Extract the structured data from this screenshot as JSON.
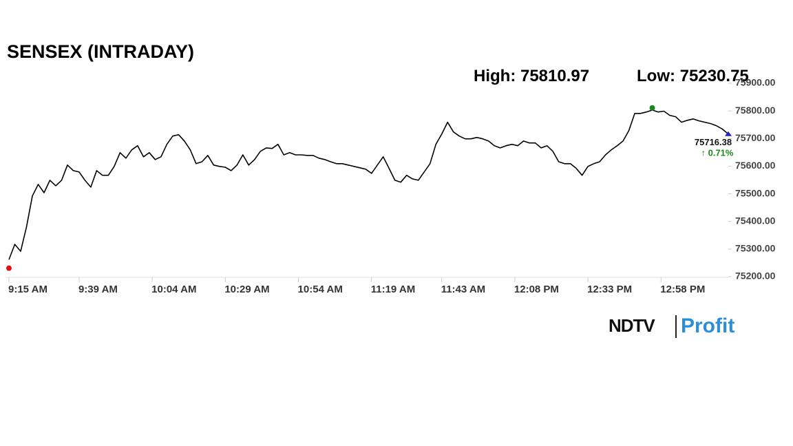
{
  "chart_data": {
    "type": "line",
    "title": "SENSEX (INTRADAY)",
    "high": {
      "label": "High:",
      "value": 75810.97
    },
    "low": {
      "label": "Low:",
      "value": 75230.75
    },
    "change_label": "↑ 0.71%",
    "logo": {
      "brand": "NDTV",
      "product": "Profit"
    },
    "color": "#000000",
    "x": [
      "9:15 AM",
      "9:17 AM",
      "9:19 AM",
      "9:21 AM",
      "9:23 AM",
      "9:25 AM",
      "9:27 AM",
      "9:29 AM",
      "9:31 AM",
      "9:33 AM",
      "9:35 AM",
      "9:37 AM",
      "9:39 AM",
      "9:41 AM",
      "9:43 AM",
      "9:45 AM",
      "9:47 AM",
      "9:49 AM",
      "9:51 AM",
      "9:53 AM",
      "9:55 AM",
      "9:57 AM",
      "9:59 AM",
      "10:01 AM",
      "10:03 AM",
      "10:05 AM",
      "10:07 AM",
      "10:09 AM",
      "10:11 AM",
      "10:13 AM",
      "10:15 AM",
      "10:17 AM",
      "10:19 AM",
      "10:21 AM",
      "10:23 AM",
      "10:25 AM",
      "10:27 AM",
      "10:29 AM",
      "10:31 AM",
      "10:33 AM",
      "10:35 AM",
      "10:37 AM",
      "10:39 AM",
      "10:41 AM",
      "10:43 AM",
      "10:45 AM",
      "10:47 AM",
      "10:49 AM",
      "10:51 AM",
      "10:53 AM",
      "10:55 AM",
      "10:57 AM",
      "10:59 AM",
      "11:01 AM",
      "11:03 AM",
      "11:05 AM",
      "11:07 AM",
      "11:09 AM",
      "11:11 AM",
      "11:13 AM",
      "11:15 AM",
      "11:17 AM",
      "11:19 AM",
      "11:21 AM",
      "11:23 AM",
      "11:25 AM",
      "11:27 AM",
      "11:29 AM",
      "11:31 AM",
      "11:33 AM",
      "11:35 AM",
      "11:37 AM",
      "11:39 AM",
      "11:41 AM",
      "11:43 AM",
      "11:45 AM",
      "11:47 AM",
      "11:49 AM",
      "11:51 AM",
      "11:53 AM",
      "11:55 AM",
      "11:57 AM",
      "11:59 AM",
      "12:01 PM",
      "12:03 PM",
      "12:05 PM",
      "12:07 PM",
      "12:09 PM",
      "12:11 PM",
      "12:13 PM",
      "12:15 PM",
      "12:17 PM",
      "12:19 PM",
      "12:21 PM",
      "12:23 PM",
      "12:25 PM",
      "12:27 PM",
      "12:29 PM",
      "12:31 PM",
      "12:33 PM",
      "12:35 PM",
      "12:37 PM",
      "12:39 PM",
      "12:41 PM",
      "12:43 PM",
      "12:45 PM",
      "12:47 PM",
      "12:49 PM",
      "12:51 PM",
      "12:53 PM",
      "12:55 PM",
      "12:57 PM",
      "12:59 PM",
      "1:01 PM",
      "1:03 PM",
      "1:05 PM",
      "1:07 PM",
      "1:09 PM",
      "1:11 PM",
      "1:13 PM",
      "1:15 PM",
      "1:17 PM",
      "1:19 PM",
      "1:21 PM"
    ],
    "values": [
      75262,
      75317,
      75292,
      75380,
      75492,
      75534,
      75504,
      75549,
      75529,
      75549,
      75604,
      75584,
      75579,
      75549,
      75524,
      75584,
      75567,
      75567,
      75599,
      75649,
      75629,
      75659,
      75674,
      75634,
      75649,
      75624,
      75634,
      75679,
      75709,
      75714,
      75691,
      75659,
      75609,
      75616,
      75639,
      75604,
      75599,
      75596,
      75584,
      75604,
      75641,
      75604,
      75624,
      75654,
      75666,
      75664,
      75679,
      75641,
      75649,
      75641,
      75641,
      75639,
      75639,
      75629,
      75624,
      75616,
      75609,
      75609,
      75604,
      75599,
      75594,
      75589,
      75574,
      75604,
      75634,
      75592,
      75549,
      75542,
      75567,
      75554,
      75549,
      75579,
      75609,
      75679,
      75716,
      75759,
      75724,
      75709,
      75699,
      75699,
      75704,
      75699,
      75691,
      75674,
      75666,
      75674,
      75679,
      75674,
      75691,
      75684,
      75684,
      75666,
      75674,
      75654,
      75616,
      75609,
      75609,
      75592,
      75567,
      75599,
      75609,
      75616,
      75641,
      75659,
      75674,
      75691,
      75729,
      75791,
      75791,
      75796,
      75803,
      75796,
      75799,
      75784,
      75779,
      75759,
      75766,
      75771,
      75764,
      75759,
      75754,
      75746,
      75734,
      75716.38
    ],
    "xticks": [
      "9:15 AM",
      "9:39 AM",
      "10:04 AM",
      "10:29 AM",
      "10:54 AM",
      "11:19 AM",
      "11:43 AM",
      "12:08 PM",
      "12:33 PM",
      "12:58 PM"
    ],
    "ylim": [
      75200,
      75900
    ],
    "yticks": [
      {
        "value": 75200,
        "label": "75200.00"
      },
      {
        "value": 75300,
        "label": "75300.00"
      },
      {
        "value": 75400,
        "label": "75400.00"
      },
      {
        "value": 75500,
        "label": "75500.00"
      },
      {
        "value": 75600,
        "label": "75600.00"
      },
      {
        "value": 75700,
        "label": "75700.00"
      },
      {
        "value": 75800,
        "label": "75800.00"
      },
      {
        "value": 75900,
        "label": "75900.00"
      }
    ]
  }
}
